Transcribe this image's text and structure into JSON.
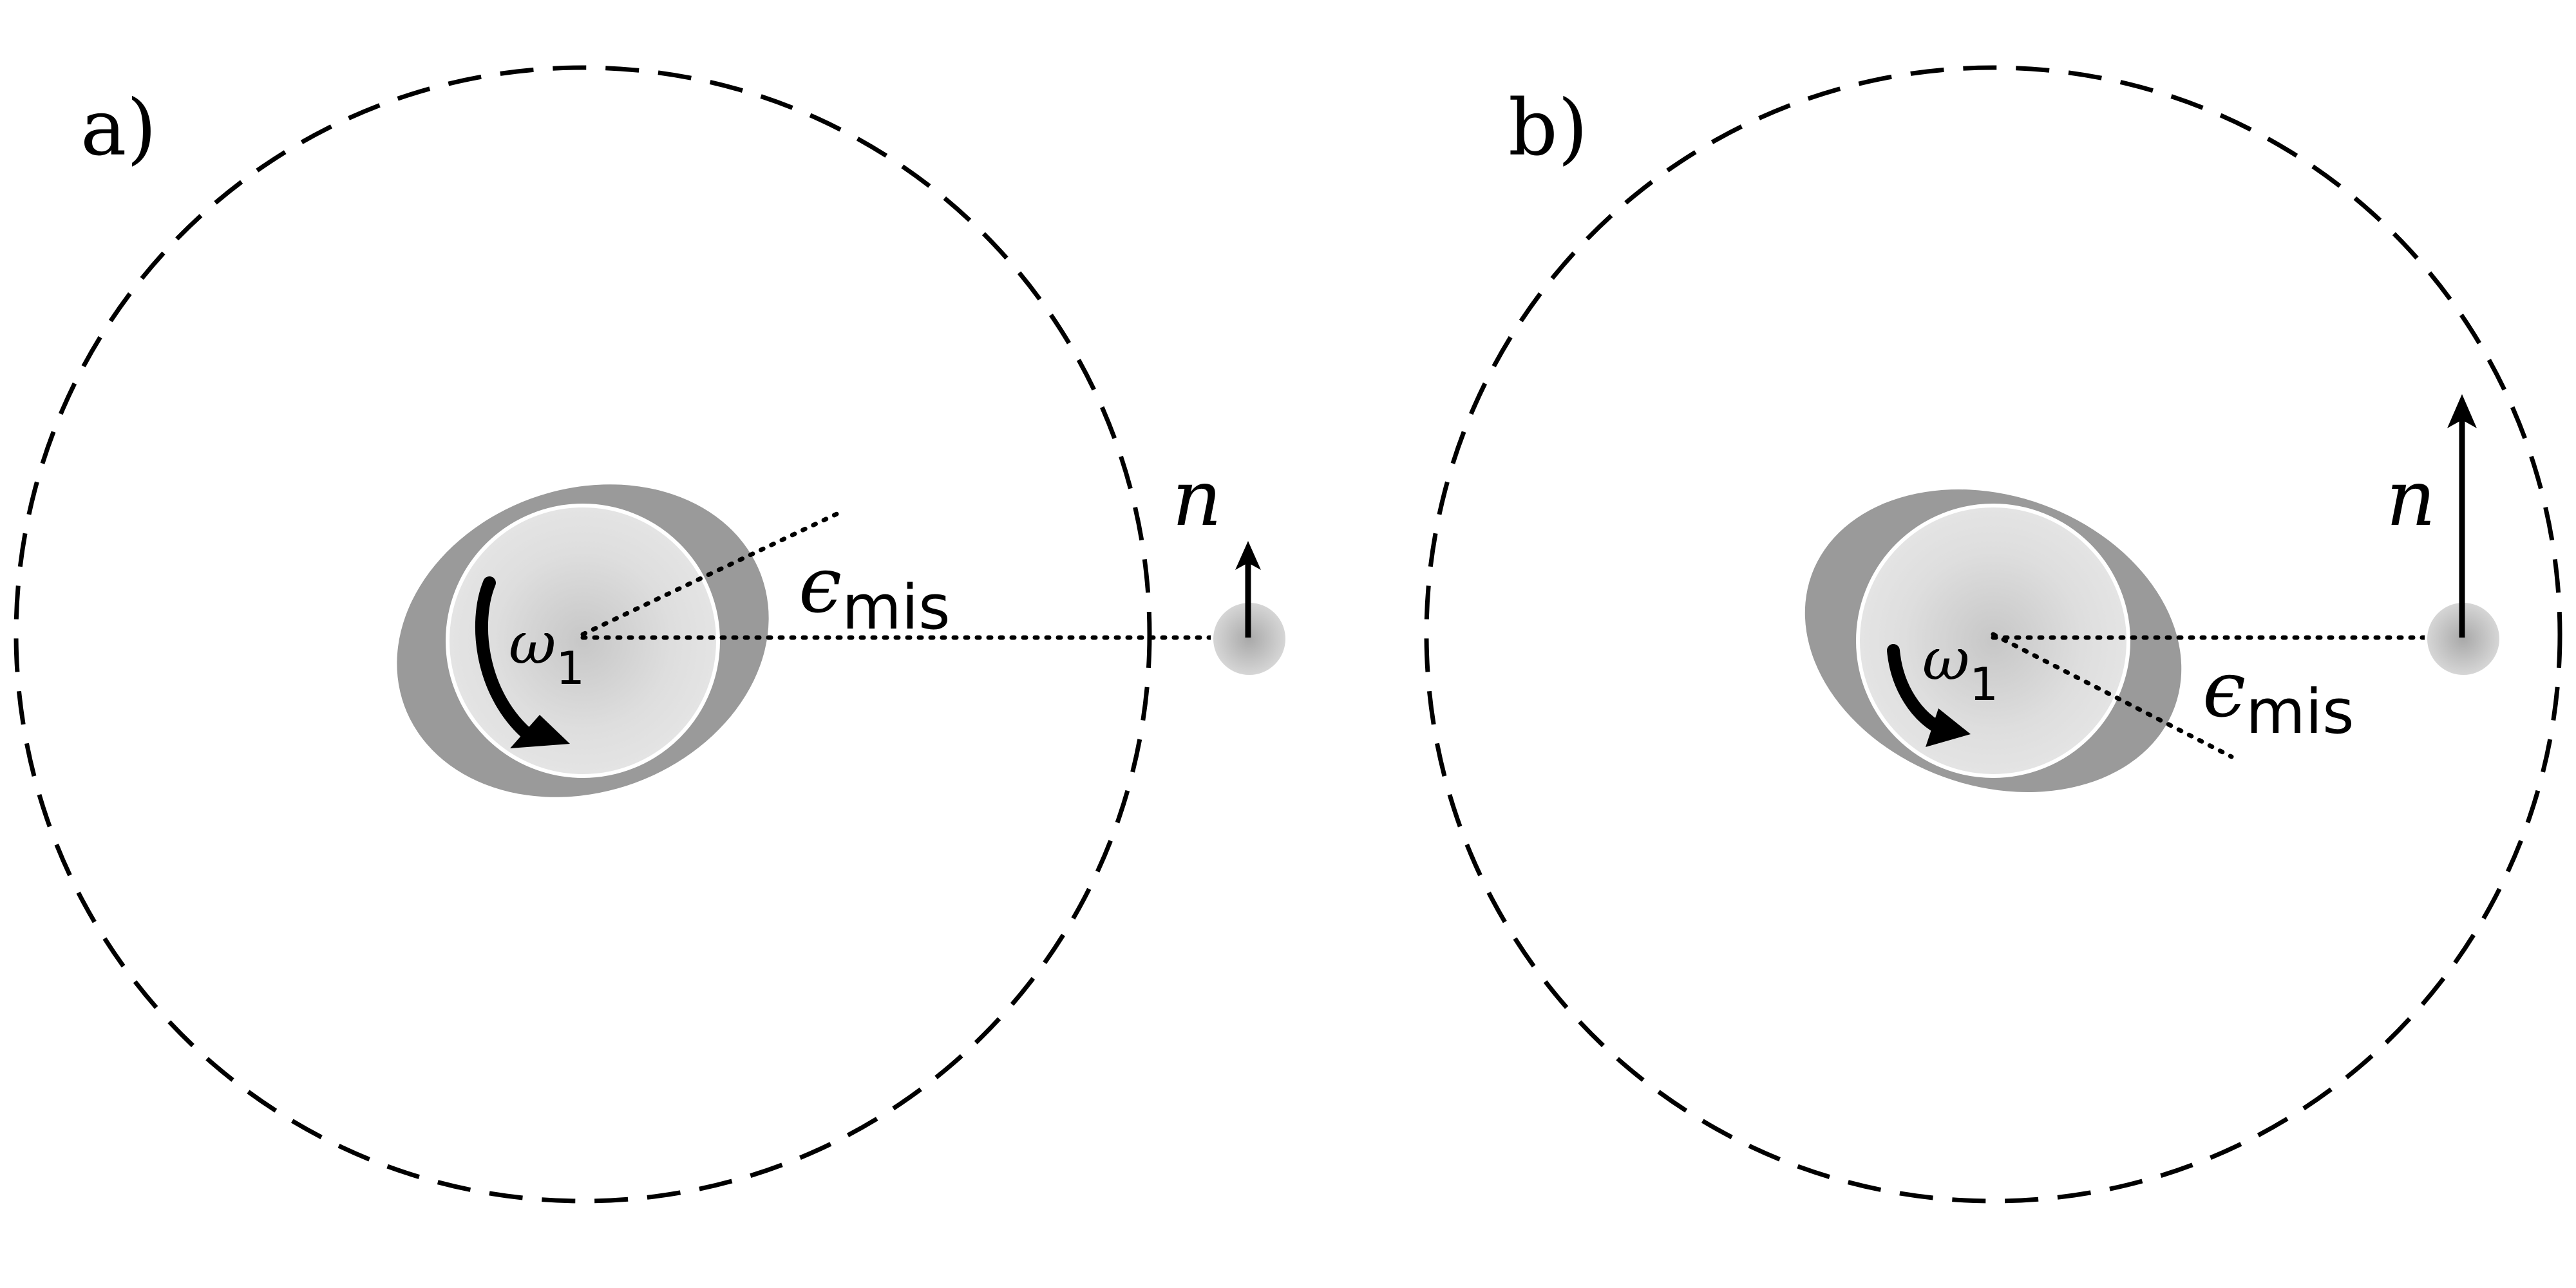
{
  "panels": [
    {
      "label": "a)",
      "omega_symbol": "ω",
      "omega_subscript": "1",
      "epsilon_symbol": "ϵ",
      "epsilon_subscript": "mis",
      "normal_symbol": "n"
    },
    {
      "label": "b)",
      "omega_symbol": "ω",
      "omega_subscript": "1",
      "epsilon_symbol": "ϵ",
      "epsilon_subscript": "mis",
      "normal_symbol": "n"
    }
  ],
  "colors": {
    "line": "#000000",
    "body_fill": "#d9d9d9",
    "bulge_fill": "#9a9a9a",
    "satellite_fill": "#c8c8c8"
  }
}
